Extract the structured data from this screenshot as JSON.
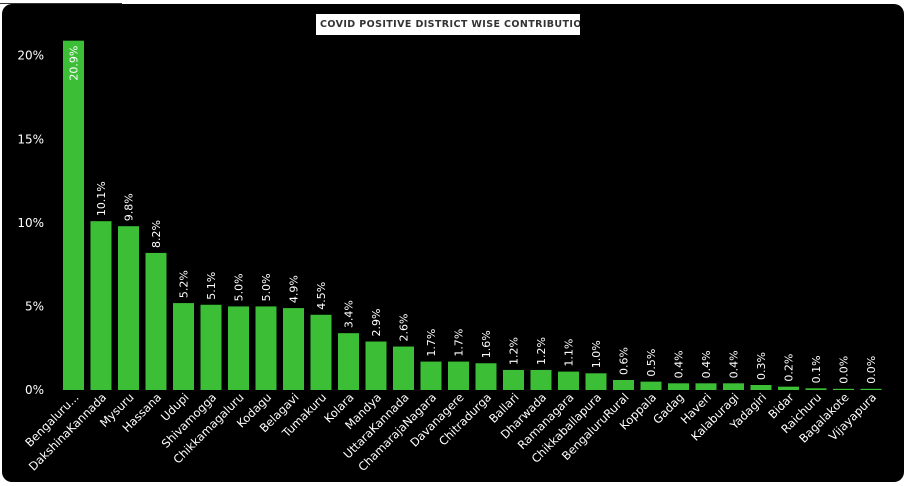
{
  "chart_data": {
    "type": "bar",
    "title": "COVID POSITIVE DISTRICT WISE CONTRIBUTIONS",
    "title_visible": "COVID POSITIVE DISTRICT WISE CONTRIBUTION",
    "xlabel": "",
    "ylabel": "",
    "ylim": [
      0,
      21
    ],
    "y_ticks": [
      "0%",
      "5%",
      "10%",
      "15%",
      "20%"
    ],
    "y_tick_values": [
      0,
      5,
      10,
      15,
      20
    ],
    "categories": [
      "Bengaluru...",
      "DakshinaKannada",
      "Mysuru",
      "Hassana",
      "Udupi",
      "Shivamogga",
      "Chikkamagaluru",
      "Kodagu",
      "Belagavi",
      "Tumakuru",
      "Kolara",
      "Mandya",
      "UttaraKannada",
      "ChamarajaNagara",
      "Davanagere",
      "Chitradurga",
      "Ballari",
      "Dharwada",
      "Ramanagara",
      "Chikkaballapura",
      "BengaluruRural",
      "Koppala",
      "Gadag",
      "Haveri",
      "Kalaburagi",
      "Yadagiri",
      "Bidar",
      "Raichuru",
      "Bagalakote",
      "Vijayapura"
    ],
    "values": [
      20.9,
      10.1,
      9.8,
      8.2,
      5.2,
      5.1,
      5.0,
      5.0,
      4.9,
      4.5,
      3.4,
      2.9,
      2.6,
      1.7,
      1.7,
      1.6,
      1.2,
      1.2,
      1.1,
      1.0,
      0.6,
      0.5,
      0.4,
      0.4,
      0.4,
      0.3,
      0.2,
      0.1,
      0.0,
      0.0
    ],
    "labels": [
      "20.9%",
      "10.1%",
      "9.8%",
      "8.2%",
      "5.2%",
      "5.1%",
      "5.0%",
      "5.0%",
      "4.9%",
      "4.5%",
      "3.4%",
      "2.9%",
      "2.6%",
      "1.7%",
      "1.7%",
      "1.6%",
      "1.2%",
      "1.2%",
      "1.1%",
      "1.0%",
      "0.6%",
      "0.5%",
      "0.4%",
      "0.4%",
      "0.4%",
      "0.3%",
      "0.2%",
      "0.1%",
      "0.0%",
      "0.0%"
    ],
    "grid": false,
    "legend": "none",
    "colors": {
      "bar": "#3cbf36",
      "background": "#000000",
      "text": "#ffffff"
    }
  }
}
